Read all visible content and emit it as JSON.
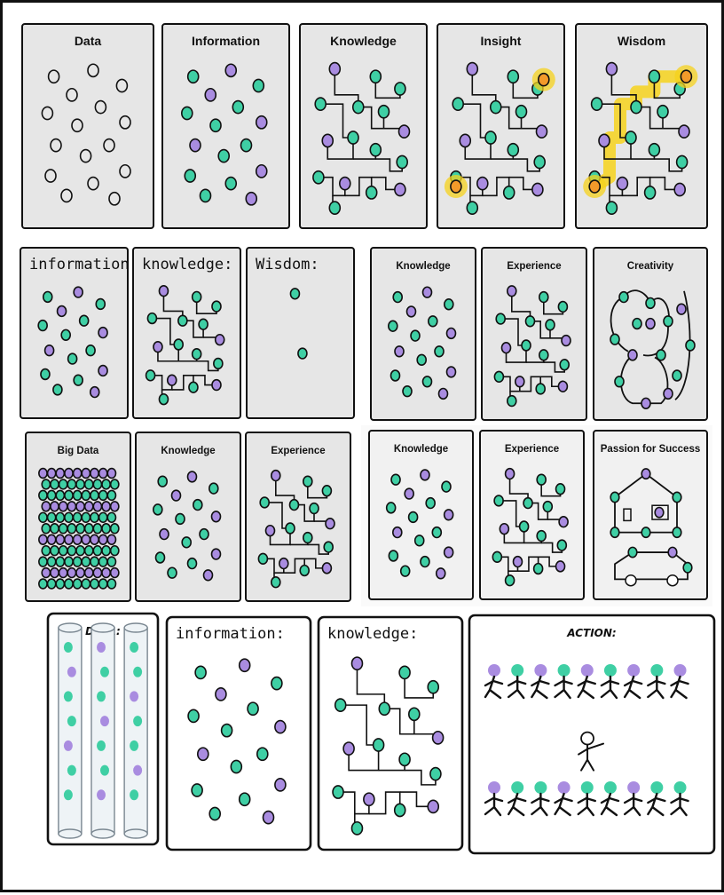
{
  "colors": {
    "panel_gray": "#e6e6e6",
    "panel_light": "#f1f1f1",
    "panel_white": "#ffffff",
    "stroke": "#111111",
    "dot_teal": "#3fcfa4",
    "dot_purple": "#a98ce0",
    "highlight": "#f6d21c"
  },
  "row1": {
    "panels": [
      {
        "label": "Data",
        "kind": "outline"
      },
      {
        "label": "Information",
        "kind": "dots"
      },
      {
        "label": "Knowledge",
        "kind": "network"
      },
      {
        "label": "Insight",
        "kind": "insight"
      },
      {
        "label": "Wisdom",
        "kind": "wisdom"
      }
    ]
  },
  "row2": {
    "left_panels": [
      {
        "label": "information:",
        "kind": "dots"
      },
      {
        "label": "knowledge:",
        "kind": "network"
      },
      {
        "label": "Wisdom:",
        "kind": "wisdom-dots"
      }
    ],
    "right_panels": [
      {
        "label": "Knowledge",
        "kind": "dots"
      },
      {
        "label": "Experience",
        "kind": "network"
      },
      {
        "label": "Creativity",
        "kind": "creativity"
      }
    ]
  },
  "row3": {
    "left_panels": [
      {
        "label": "Big Data",
        "kind": "bigdata"
      },
      {
        "label": "Knowledge",
        "kind": "dots"
      },
      {
        "label": "Experience",
        "kind": "network"
      }
    ],
    "right_panels": [
      {
        "label": "Knowledge",
        "kind": "dots"
      },
      {
        "label": "Experience",
        "kind": "network"
      },
      {
        "label": "Passion for Success",
        "kind": "passion"
      }
    ]
  },
  "row4": {
    "panels": [
      {
        "label": "DATA:",
        "kind": "silos"
      },
      {
        "label": "information:",
        "kind": "dots"
      },
      {
        "label": "knowledge:",
        "kind": "network"
      },
      {
        "label": "ACTION:",
        "kind": "action"
      }
    ]
  }
}
